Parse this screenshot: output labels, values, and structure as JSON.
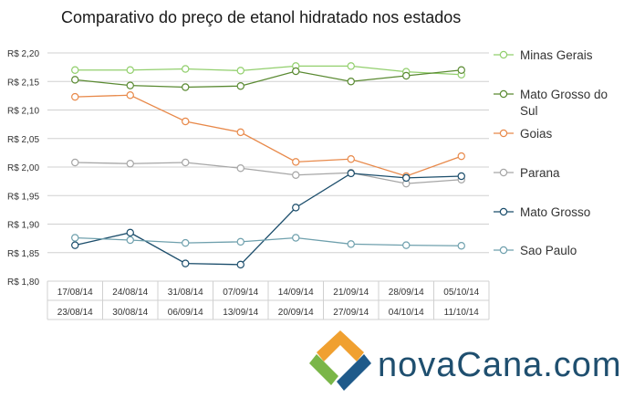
{
  "chart_data": {
    "type": "line",
    "title": "Comparativo do preço de etanol hidratado nos estados",
    "xlabel": "",
    "ylabel": "",
    "ylim": [
      1.8,
      2.2
    ],
    "yticks": [
      1.8,
      1.85,
      1.9,
      1.95,
      2.0,
      2.05,
      2.1,
      2.15,
      2.2
    ],
    "ytick_labels": [
      "R$ 1,80",
      "R$ 1,85",
      "R$ 1,90",
      "R$ 1,95",
      "R$ 2,00",
      "R$ 2,05",
      "R$ 2,10",
      "R$ 2,15",
      "R$ 2,20"
    ],
    "grid": true,
    "legend_position": "right",
    "categories": [
      {
        "start": "17/08/14",
        "end": "23/08/14"
      },
      {
        "start": "24/08/14",
        "end": "30/08/14"
      },
      {
        "start": "31/08/14",
        "end": "06/09/14"
      },
      {
        "start": "07/09/14",
        "end": "13/09/14"
      },
      {
        "start": "14/09/14",
        "end": "20/09/14"
      },
      {
        "start": "21/09/14",
        "end": "27/09/14"
      },
      {
        "start": "28/09/14",
        "end": "04/10/14"
      },
      {
        "start": "05/10/14",
        "end": "11/10/14"
      }
    ],
    "series": [
      {
        "name": "Minas Gerais",
        "color": "#92cf6d",
        "values": [
          2.17,
          2.17,
          2.172,
          2.169,
          2.177,
          2.177,
          2.167,
          2.162
        ]
      },
      {
        "name": "Mato Grosso do Sul",
        "color": "#5a8a32",
        "values": [
          2.153,
          2.143,
          2.14,
          2.142,
          2.168,
          2.15,
          2.16,
          2.17
        ]
      },
      {
        "name": "Goias",
        "color": "#e8894a",
        "values": [
          2.123,
          2.126,
          2.08,
          2.061,
          2.009,
          2.014,
          1.984,
          2.019
        ]
      },
      {
        "name": "Parana",
        "color": "#a6a6a6",
        "values": [
          2.008,
          2.006,
          2.008,
          1.998,
          1.986,
          1.99,
          1.971,
          1.978
        ]
      },
      {
        "name": "Mato Grosso",
        "color": "#1b4d6b",
        "values": [
          1.863,
          1.885,
          1.831,
          1.829,
          1.929,
          1.989,
          1.981,
          1.984
        ]
      },
      {
        "name": "Sao Paulo",
        "color": "#6fa0ad",
        "values": [
          1.876,
          1.872,
          1.867,
          1.869,
          1.876,
          1.865,
          1.863,
          1.862
        ]
      }
    ]
  },
  "logo": {
    "text": "novaCana.com",
    "colors": {
      "green": "#7ab648",
      "blue": "#1f5a8a",
      "orange": "#f0a030",
      "text": "#1f4f6f"
    }
  }
}
